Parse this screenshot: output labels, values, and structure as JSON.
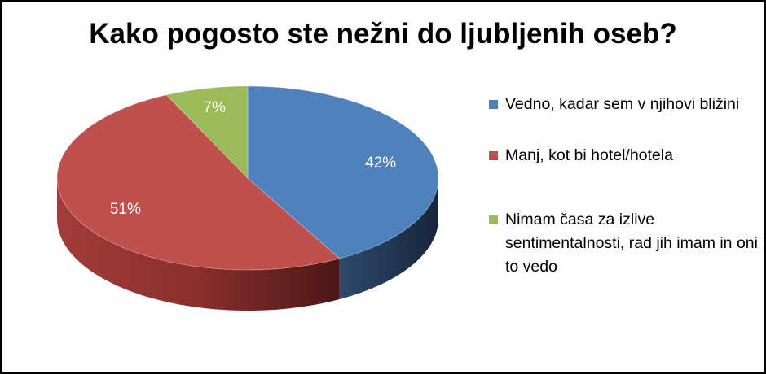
{
  "chart_data": {
    "type": "pie",
    "title": "Kako pogosto ste nežni do ljubljenih oseb?",
    "categories": [
      "Vedno, kadar sem v njihovi bližini",
      "Manj, kot bi hotel/hotela",
      "Nimam časa za izlive sentimentalnosti, rad jih imam in oni to vedo"
    ],
    "values": [
      42,
      51,
      7
    ],
    "data_labels": [
      "42%",
      "51%",
      "7%"
    ],
    "colors": [
      "#4f81bd",
      "#c0504d",
      "#9bbb59"
    ],
    "legend_position": "right",
    "style": "3d"
  }
}
